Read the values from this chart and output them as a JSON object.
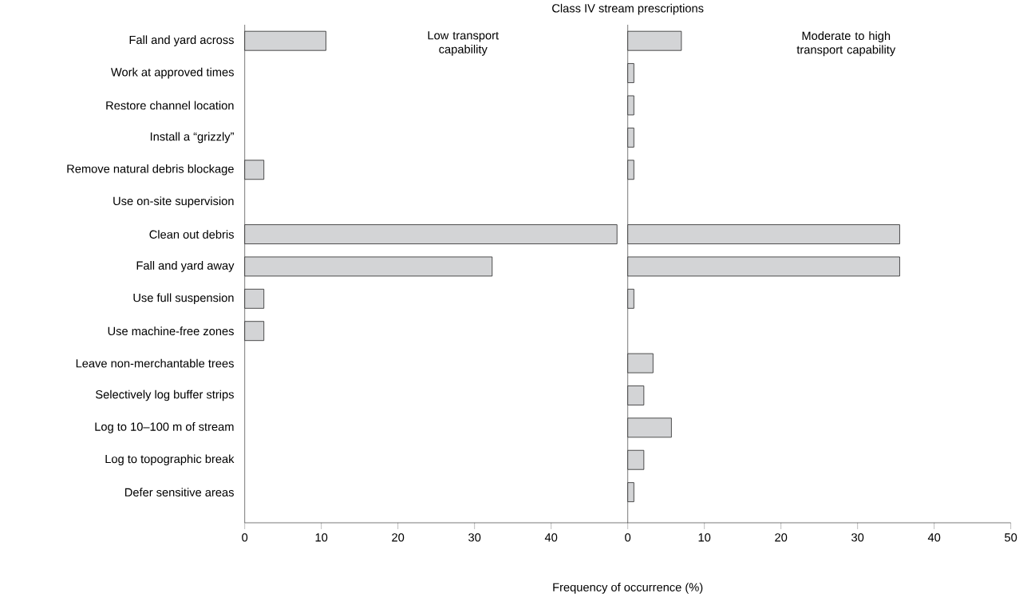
{
  "chart_data": [
    {
      "type": "bar",
      "orientation": "horizontal",
      "title": "Class IV stream prescriptions",
      "subtitle": "Low transport capability",
      "xlabel": "Frequency of occurrence (%)",
      "categories": [
        "Fall and yard across",
        "Work at approved times",
        "Restore channel location",
        "Install a “grizzly”",
        "Remove natural debris blockage",
        "Use on-site supervision",
        "Clean out debris",
        "Fall and yard away",
        "Use full suspension",
        "Use machine-free zones",
        "Leave non-merchantable trees",
        "Selectively log buffer strips",
        "Log to 10–100 m of stream",
        "Log to topographic break",
        "Defer sensitive areas"
      ],
      "values": [
        10.6,
        null,
        null,
        null,
        2.5,
        null,
        48.6,
        32.3,
        2.5,
        2.5,
        null,
        null,
        null,
        null,
        null
      ],
      "color": "#d3d4d6",
      "xlim": [
        0,
        50
      ],
      "xticks": [
        0,
        10,
        20,
        30,
        40
      ],
      "grid": false
    },
    {
      "type": "bar",
      "orientation": "horizontal",
      "subtitle": "Moderate to high transport capability",
      "values": [
        7.0,
        0.8,
        0.8,
        0.8,
        0.8,
        null,
        35.5,
        35.5,
        0.8,
        null,
        3.3,
        2.1,
        5.7,
        2.1,
        0.8
      ],
      "color": "#d3d4d6",
      "xlim": [
        0,
        50
      ],
      "xticks": [
        0,
        10,
        20,
        30,
        40,
        50
      ],
      "tick_labels": "x",
      "grid": false
    }
  ]
}
